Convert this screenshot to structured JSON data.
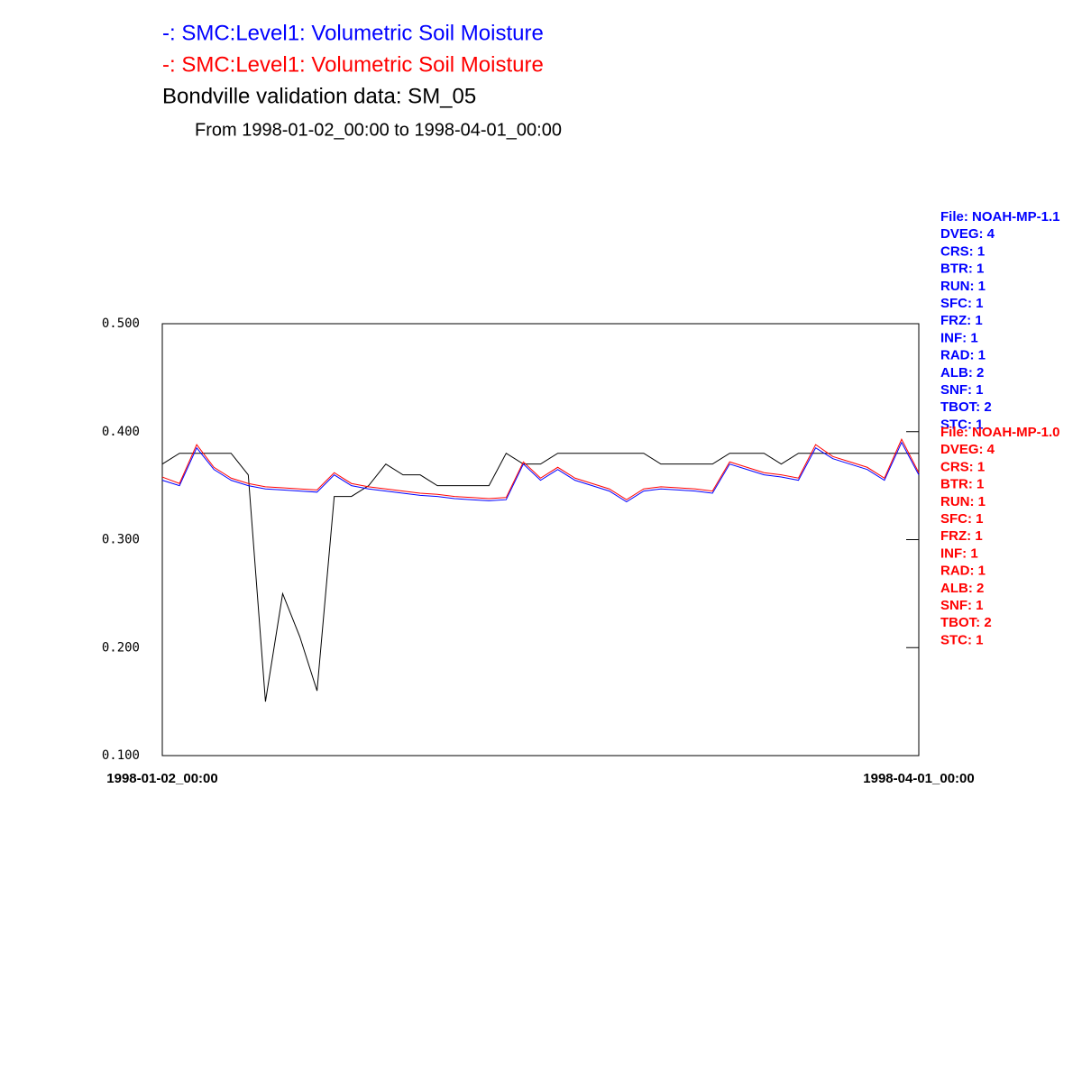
{
  "chart_data": {
    "type": "line",
    "title": "Bondville validation data:  SM_05",
    "subtitle": "From 1998-01-02_00:00 to 1998-04-01_00:00",
    "categories": [
      "1998-01-02_00:00",
      null,
      null,
      null,
      null,
      null,
      null,
      null,
      null,
      null,
      null,
      null,
      null,
      null,
      null,
      null,
      null,
      null,
      null,
      null,
      null,
      null,
      null,
      null,
      null,
      null,
      null,
      null,
      null,
      null,
      null,
      null,
      null,
      null,
      null,
      null,
      null,
      null,
      null,
      null,
      null,
      null,
      null,
      null,
      "1998-04-01_00:00"
    ],
    "series": [
      {
        "name": "-:  SMC:Level1: Volumetric Soil Moisture",
        "color": "#0000ff",
        "info": [
          "File: NOAH-MP-1.1",
          "DVEG: 4",
          "CRS: 1",
          "BTR: 1",
          "RUN: 1",
          "SFC: 1",
          "FRZ: 1",
          "INF: 1",
          "RAD: 1",
          "ALB: 2",
          "SNF: 1",
          "TBOT: 2",
          "STC: 1"
        ],
        "values": [
          0.355,
          0.35,
          0.385,
          0.365,
          0.355,
          0.35,
          0.347,
          0.346,
          0.345,
          0.344,
          0.36,
          0.35,
          0.347,
          0.345,
          0.343,
          0.341,
          0.34,
          0.338,
          0.337,
          0.336,
          0.337,
          0.37,
          0.355,
          0.365,
          0.355,
          0.35,
          0.345,
          0.335,
          0.345,
          0.347,
          0.346,
          0.345,
          0.343,
          0.37,
          0.365,
          0.36,
          0.358,
          0.355,
          0.385,
          0.375,
          0.37,
          0.365,
          0.355,
          0.39,
          0.36
        ]
      },
      {
        "name": "-:  SMC:Level1: Volumetric Soil Moisture",
        "color": "#ff0000",
        "info": [
          "File: NOAH-MP-1.0",
          "DVEG: 4",
          "CRS: 1",
          "BTR: 1",
          "RUN: 1",
          "SFC: 1",
          "FRZ: 1",
          "INF: 1",
          "RAD: 1",
          "ALB: 2",
          "SNF: 1",
          "TBOT: 2",
          "STC: 1"
        ],
        "values": [
          0.358,
          0.352,
          0.388,
          0.367,
          0.357,
          0.352,
          0.349,
          0.348,
          0.347,
          0.346,
          0.362,
          0.352,
          0.349,
          0.347,
          0.345,
          0.343,
          0.342,
          0.34,
          0.339,
          0.338,
          0.339,
          0.372,
          0.357,
          0.367,
          0.357,
          0.352,
          0.347,
          0.337,
          0.347,
          0.349,
          0.348,
          0.347,
          0.345,
          0.372,
          0.367,
          0.362,
          0.36,
          0.357,
          0.388,
          0.377,
          0.372,
          0.367,
          0.357,
          0.393,
          0.362
        ]
      },
      {
        "color": "#000000",
        "values": [
          0.37,
          0.38,
          0.38,
          0.38,
          0.38,
          0.36,
          0.15,
          0.25,
          0.21,
          0.16,
          0.34,
          0.34,
          0.35,
          0.37,
          0.36,
          0.36,
          0.35,
          0.35,
          0.35,
          0.35,
          0.38,
          0.37,
          0.37,
          0.38,
          0.38,
          0.38,
          0.38,
          0.38,
          0.38,
          0.37,
          0.37,
          0.37,
          0.37,
          0.38,
          0.38,
          0.38,
          0.37,
          0.38,
          0.38,
          0.38,
          0.38,
          0.38,
          0.38,
          0.38,
          0.38
        ]
      }
    ],
    "ylim": [
      0.1,
      0.5
    ],
    "yticks": [
      {
        "value": 0.1,
        "label": "0.100"
      },
      {
        "value": 0.2,
        "label": "0.200"
      },
      {
        "value": 0.3,
        "label": "0.300"
      },
      {
        "value": 0.4,
        "label": "0.400"
      },
      {
        "value": 0.5,
        "label": "0.500"
      }
    ]
  }
}
